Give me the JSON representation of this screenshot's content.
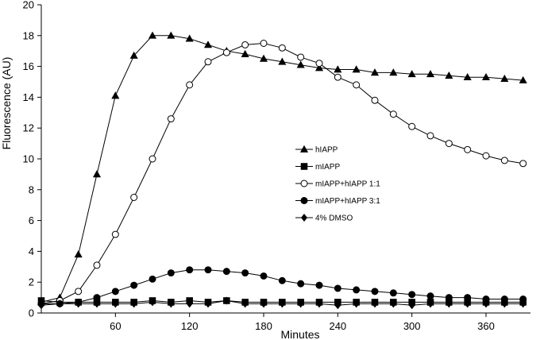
{
  "chart_data": {
    "type": "line",
    "xlabel": "Minutes",
    "ylabel": "Fluorescence (AU)",
    "xlim": [
      0,
      396
    ],
    "ylim": [
      0,
      20
    ],
    "xticks": [
      60,
      120,
      180,
      240,
      300,
      360
    ],
    "yticks": [
      0,
      2,
      4,
      6,
      8,
      10,
      12,
      14,
      16,
      18,
      20
    ],
    "grid": false,
    "legend_position": "center-right",
    "series": [
      {
        "name": "hIAPP",
        "marker": "triangle",
        "fill": "filled",
        "x": [
          0,
          15,
          30,
          45,
          60,
          75,
          90,
          105,
          120,
          135,
          150,
          165,
          180,
          195,
          210,
          225,
          240,
          255,
          270,
          285,
          300,
          315,
          330,
          345,
          360,
          375,
          390
        ],
        "y": [
          0.7,
          1.0,
          3.8,
          9.0,
          14.1,
          16.7,
          18.0,
          18.0,
          17.8,
          17.4,
          17.0,
          16.8,
          16.5,
          16.3,
          16.1,
          15.9,
          15.8,
          15.8,
          15.6,
          15.6,
          15.5,
          15.5,
          15.4,
          15.3,
          15.3,
          15.2,
          15.1
        ]
      },
      {
        "name": "mIAPP",
        "marker": "square",
        "fill": "filled",
        "x": [
          0,
          15,
          30,
          45,
          60,
          75,
          90,
          105,
          120,
          135,
          150,
          165,
          180,
          195,
          210,
          225,
          240,
          255,
          270,
          285,
          300,
          315,
          330,
          345,
          360,
          375,
          390
        ],
        "y": [
          0.8,
          0.7,
          0.7,
          0.7,
          0.7,
          0.7,
          0.8,
          0.7,
          0.8,
          0.7,
          0.8,
          0.7,
          0.7,
          0.7,
          0.7,
          0.7,
          0.7,
          0.7,
          0.7,
          0.7,
          0.7,
          0.7,
          0.7,
          0.7,
          0.7,
          0.7,
          0.7
        ]
      },
      {
        "name": "mIAPP+hIAPP 1:1",
        "marker": "circle",
        "fill": "open",
        "x": [
          0,
          15,
          30,
          45,
          60,
          75,
          90,
          105,
          120,
          135,
          150,
          165,
          180,
          195,
          210,
          225,
          240,
          255,
          270,
          285,
          300,
          315,
          330,
          345,
          360,
          375,
          390
        ],
        "y": [
          0.6,
          0.8,
          1.4,
          3.1,
          5.1,
          7.5,
          10.0,
          12.6,
          14.8,
          16.3,
          16.9,
          17.4,
          17.5,
          17.2,
          16.6,
          16.2,
          15.3,
          14.8,
          13.8,
          12.9,
          12.1,
          11.5,
          11.0,
          10.6,
          10.2,
          9.9,
          9.7
        ]
      },
      {
        "name": "mIAPP+hIAPP 3:1",
        "marker": "circle",
        "fill": "filled",
        "x": [
          0,
          15,
          30,
          45,
          60,
          75,
          90,
          105,
          120,
          135,
          150,
          165,
          180,
          195,
          210,
          225,
          240,
          255,
          270,
          285,
          300,
          315,
          330,
          345,
          360,
          375,
          390
        ],
        "y": [
          0.6,
          0.6,
          0.7,
          1.0,
          1.4,
          1.8,
          2.2,
          2.6,
          2.8,
          2.8,
          2.7,
          2.6,
          2.4,
          2.1,
          1.9,
          1.8,
          1.6,
          1.5,
          1.4,
          1.3,
          1.2,
          1.1,
          1.0,
          1.0,
          0.9,
          0.9,
          0.9
        ]
      },
      {
        "name": "4% DMSO",
        "marker": "diamond",
        "fill": "filled",
        "x": [
          0,
          15,
          30,
          45,
          60,
          75,
          90,
          105,
          120,
          135,
          150,
          165,
          180,
          195,
          210,
          225,
          240,
          255,
          270,
          285,
          300,
          315,
          330,
          345,
          360,
          375,
          390
        ],
        "y": [
          0.5,
          0.6,
          0.6,
          0.6,
          0.6,
          0.6,
          0.7,
          0.6,
          0.6,
          0.6,
          0.8,
          0.6,
          0.6,
          0.6,
          0.6,
          0.6,
          0.5,
          0.6,
          0.6,
          0.6,
          0.5,
          0.6,
          0.6,
          0.6,
          0.6,
          0.6,
          0.6
        ]
      }
    ]
  }
}
